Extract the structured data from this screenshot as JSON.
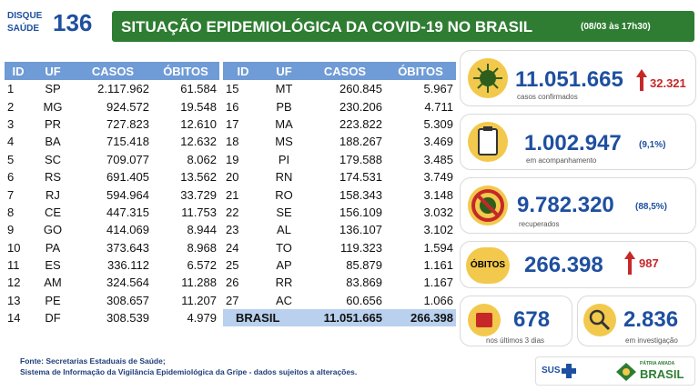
{
  "header": {
    "logo": {
      "top": "DISQUE",
      "bottom": "SAÚDE",
      "number": "136"
    },
    "title": "SITUAÇÃO EPIDEMIOLÓGICA DA COVID-19 NO BRASIL",
    "date": "(08/03 às 17h30)"
  },
  "table": {
    "columns": [
      "ID",
      "UF",
      "CASOS",
      "ÓBITOS"
    ],
    "left_rows": [
      [
        "1",
        "SP",
        "2.117.962",
        "61.584"
      ],
      [
        "2",
        "MG",
        "924.572",
        "19.548"
      ],
      [
        "3",
        "PR",
        "727.823",
        "12.610"
      ],
      [
        "4",
        "BA",
        "715.418",
        "12.632"
      ],
      [
        "5",
        "SC",
        "709.077",
        "8.062"
      ],
      [
        "6",
        "RS",
        "691.405",
        "13.562"
      ],
      [
        "7",
        "RJ",
        "594.964",
        "33.729"
      ],
      [
        "8",
        "CE",
        "447.315",
        "11.753"
      ],
      [
        "9",
        "GO",
        "414.069",
        "8.944"
      ],
      [
        "10",
        "PA",
        "373.643",
        "8.968"
      ],
      [
        "11",
        "ES",
        "336.112",
        "6.572"
      ],
      [
        "12",
        "AM",
        "324.564",
        "11.288"
      ],
      [
        "13",
        "PE",
        "308.657",
        "11.207"
      ],
      [
        "14",
        "DF",
        "308.539",
        "4.979"
      ]
    ],
    "right_rows": [
      [
        "15",
        "MT",
        "260.845",
        "5.967"
      ],
      [
        "16",
        "PB",
        "230.206",
        "4.711"
      ],
      [
        "17",
        "MA",
        "223.822",
        "5.309"
      ],
      [
        "18",
        "MS",
        "188.267",
        "3.469"
      ],
      [
        "19",
        "PI",
        "179.588",
        "3.485"
      ],
      [
        "20",
        "RN",
        "174.531",
        "3.749"
      ],
      [
        "21",
        "RO",
        "158.343",
        "3.148"
      ],
      [
        "22",
        "SE",
        "156.109",
        "3.032"
      ],
      [
        "23",
        "AL",
        "136.107",
        "3.102"
      ],
      [
        "24",
        "TO",
        "119.323",
        "1.594"
      ],
      [
        "25",
        "AP",
        "85.879",
        "1.161"
      ],
      [
        "26",
        "RR",
        "83.869",
        "1.167"
      ],
      [
        "27",
        "AC",
        "60.656",
        "1.066"
      ]
    ],
    "total": {
      "label": "BRASIL",
      "cases": "11.051.665",
      "deaths": "266.398"
    }
  },
  "stats": {
    "confirmed": {
      "value": "11.051.665",
      "delta": "32.321",
      "label": "casos confirmados"
    },
    "monitoring": {
      "value": "1.002.947",
      "percent": "(9,1%)",
      "label": "em acompanhamento"
    },
    "recovered": {
      "value": "9.782.320",
      "percent": "(88,5%)",
      "label": "recuperados"
    },
    "deaths": {
      "badge": "ÓBITOS",
      "value": "266.398",
      "delta": "987"
    },
    "last_days": {
      "value": "678",
      "label": "nos últimos 3 dias"
    },
    "investigation": {
      "value": "2.836",
      "label": "em investigação"
    }
  },
  "footer": {
    "source": "Fonte: Secretarias Estaduais de Saúde;",
    "note": "Sistema de Informação da Vigilância Epidemiológica da Gripe - dados sujeitos a alterações."
  },
  "logos": {
    "sus": "SUS",
    "motto": "PÁTRIA AMADA",
    "country": "BRASIL"
  }
}
